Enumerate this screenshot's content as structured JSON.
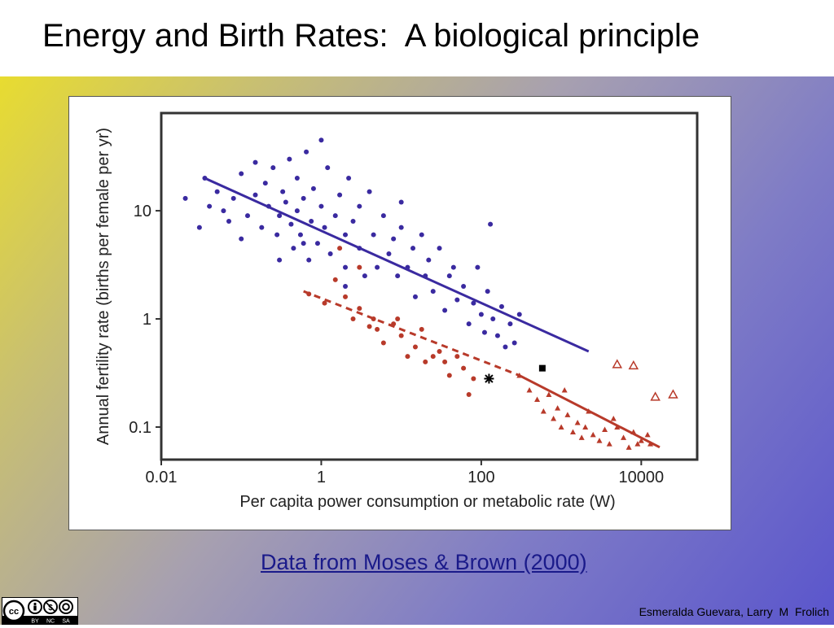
{
  "slide": {
    "title": "Energy and Birth Rates:  A biological principle",
    "source_link": "Data from Moses & Brown (2000)",
    "author": "Esmeralda Guevara, Larry  M  Frolich",
    "license_badge": {
      "icon_names": [
        "creative-commons-icon",
        "attribution-icon",
        "noncommercial-icon",
        "sharealike-icon"
      ],
      "labels": [
        "BY",
        "NC",
        "SA"
      ]
    }
  },
  "chart_data": {
    "type": "scatter",
    "title": "",
    "xlabel": "Per capita power consumption or metabolic rate (W)",
    "ylabel": "Annual fertility rate (births per female per yr)",
    "x_scale": "log",
    "y_scale": "log",
    "xlim": [
      0.01,
      50000
    ],
    "ylim": [
      0.05,
      80
    ],
    "x_ticks": [
      0.01,
      1,
      100,
      10000
    ],
    "x_tick_labels": [
      "0.01",
      "1",
      "100",
      "10000"
    ],
    "y_ticks": [
      0.1,
      1,
      10
    ],
    "y_tick_labels": [
      "0.1",
      "1",
      "10"
    ],
    "grid": false,
    "colors": {
      "blue": "#3a2aa0",
      "red": "#b83a2a",
      "black": "#000000",
      "background": "#ffffff"
    },
    "series": [
      {
        "color": "#3a2aa0",
        "marker": "dot",
        "points": [
          [
            0.035,
            20
          ],
          [
            0.05,
            15
          ],
          [
            0.06,
            10
          ],
          [
            0.07,
            8
          ],
          [
            0.08,
            13
          ],
          [
            0.1,
            22
          ],
          [
            0.1,
            5.5
          ],
          [
            0.12,
            9
          ],
          [
            0.15,
            14
          ],
          [
            0.18,
            7
          ],
          [
            0.2,
            18
          ],
          [
            0.22,
            11
          ],
          [
            0.25,
            25
          ],
          [
            0.28,
            6
          ],
          [
            0.3,
            9
          ],
          [
            0.33,
            15
          ],
          [
            0.36,
            12
          ],
          [
            0.4,
            30
          ],
          [
            0.42,
            7.5
          ],
          [
            0.45,
            4.5
          ],
          [
            0.5,
            10
          ],
          [
            0.5,
            20
          ],
          [
            0.55,
            6
          ],
          [
            0.6,
            13
          ],
          [
            0.65,
            35
          ],
          [
            0.7,
            3.5
          ],
          [
            0.75,
            8
          ],
          [
            0.8,
            16
          ],
          [
            0.9,
            5
          ],
          [
            1,
            11
          ],
          [
            1.1,
            7
          ],
          [
            1.2,
            25
          ],
          [
            1.3,
            4
          ],
          [
            1.5,
            9
          ],
          [
            1.7,
            14
          ],
          [
            2,
            6
          ],
          [
            2,
            3
          ],
          [
            2.2,
            20
          ],
          [
            2.5,
            8
          ],
          [
            3,
            11
          ],
          [
            3,
            4.5
          ],
          [
            3.5,
            2.5
          ],
          [
            4,
            15
          ],
          [
            4.5,
            6
          ],
          [
            5,
            3
          ],
          [
            6,
            9
          ],
          [
            7,
            4
          ],
          [
            8,
            5.5
          ],
          [
            9,
            2.5
          ],
          [
            10,
            7
          ],
          [
            10,
            12
          ],
          [
            12,
            3
          ],
          [
            14,
            4.5
          ],
          [
            15,
            1.6
          ],
          [
            18,
            6
          ],
          [
            20,
            2.5
          ],
          [
            22,
            3.5
          ],
          [
            25,
            1.8
          ],
          [
            30,
            4.5
          ],
          [
            35,
            1.2
          ],
          [
            40,
            2.5
          ],
          [
            45,
            3
          ],
          [
            50,
            1.5
          ],
          [
            60,
            2
          ],
          [
            70,
            0.9
          ],
          [
            80,
            1.4
          ],
          [
            90,
            3
          ],
          [
            100,
            1.1
          ],
          [
            110,
            0.75
          ],
          [
            120,
            1.8
          ],
          [
            140,
            1
          ],
          [
            160,
            0.7
          ],
          [
            180,
            1.3
          ],
          [
            200,
            0.55
          ],
          [
            230,
            0.9
          ],
          [
            260,
            0.6
          ],
          [
            300,
            1.1
          ],
          [
            130,
            7.5
          ],
          [
            0.02,
            13
          ],
          [
            0.03,
            7
          ],
          [
            0.04,
            11
          ],
          [
            0.15,
            28
          ],
          [
            1,
            45
          ],
          [
            0.6,
            5
          ],
          [
            0.3,
            3.5
          ],
          [
            2,
            2
          ]
        ]
      },
      {
        "color": "#b83a2a",
        "marker": "dot",
        "points": [
          [
            0.7,
            1.7
          ],
          [
            1.1,
            1.4
          ],
          [
            1.5,
            2.3
          ],
          [
            2,
            1.6
          ],
          [
            2.5,
            1
          ],
          [
            3,
            1.25
          ],
          [
            4,
            0.85
          ],
          [
            4.5,
            1
          ],
          [
            5,
            0.8
          ],
          [
            6,
            0.6
          ],
          [
            8,
            0.9
          ],
          [
            9,
            1
          ],
          [
            10,
            0.7
          ],
          [
            12,
            0.45
          ],
          [
            15,
            0.55
          ],
          [
            18,
            0.8
          ],
          [
            20,
            0.4
          ],
          [
            25,
            0.45
          ],
          [
            30,
            0.5
          ],
          [
            35,
            0.4
          ],
          [
            40,
            0.3
          ],
          [
            50,
            0.45
          ],
          [
            60,
            0.35
          ],
          [
            70,
            0.2
          ],
          [
            80,
            0.28
          ],
          [
            1.7,
            4.5
          ],
          [
            3,
            3
          ]
        ]
      },
      {
        "color": "#b83a2a",
        "marker": "triangle",
        "points": [
          [
            300,
            0.3
          ],
          [
            400,
            0.22
          ],
          [
            500,
            0.18
          ],
          [
            600,
            0.14
          ],
          [
            700,
            0.2
          ],
          [
            800,
            0.12
          ],
          [
            900,
            0.15
          ],
          [
            1000,
            0.1
          ],
          [
            1200,
            0.13
          ],
          [
            1400,
            0.09
          ],
          [
            1600,
            0.11
          ],
          [
            1800,
            0.08
          ],
          [
            2000,
            0.1
          ],
          [
            2500,
            0.085
          ],
          [
            3000,
            0.075
          ],
          [
            3500,
            0.095
          ],
          [
            4000,
            0.07
          ],
          [
            5000,
            0.1
          ],
          [
            6000,
            0.08
          ],
          [
            7000,
            0.065
          ],
          [
            8000,
            0.09
          ],
          [
            9000,
            0.07
          ],
          [
            10000,
            0.075
          ],
          [
            1100,
            0.22
          ],
          [
            2200,
            0.14
          ],
          [
            4500,
            0.12
          ],
          [
            12000,
            0.085
          ],
          [
            13000,
            0.07
          ]
        ]
      },
      {
        "color": "#b83a2a",
        "marker": "open-triangle",
        "points": [
          [
            5000,
            0.38
          ],
          [
            8000,
            0.37
          ],
          [
            15000,
            0.19
          ],
          [
            25000,
            0.2
          ]
        ]
      },
      {
        "color": "#000000",
        "marker": "square",
        "points": [
          [
            580,
            0.35
          ]
        ]
      },
      {
        "color": "#000000",
        "marker": "star",
        "points": [
          [
            125,
            0.28
          ]
        ]
      }
    ],
    "fit_lines": [
      {
        "color": "#3a2aa0",
        "style": "solid",
        "from": [
          0.035,
          20
        ],
        "to": [
          2200,
          0.5
        ]
      },
      {
        "color": "#b83a2a",
        "style": "dashed",
        "from": [
          0.6,
          1.8
        ],
        "to": [
          300,
          0.3
        ]
      },
      {
        "color": "#b83a2a",
        "style": "solid",
        "from": [
          300,
          0.3
        ],
        "to": [
          17000,
          0.065
        ]
      }
    ]
  }
}
